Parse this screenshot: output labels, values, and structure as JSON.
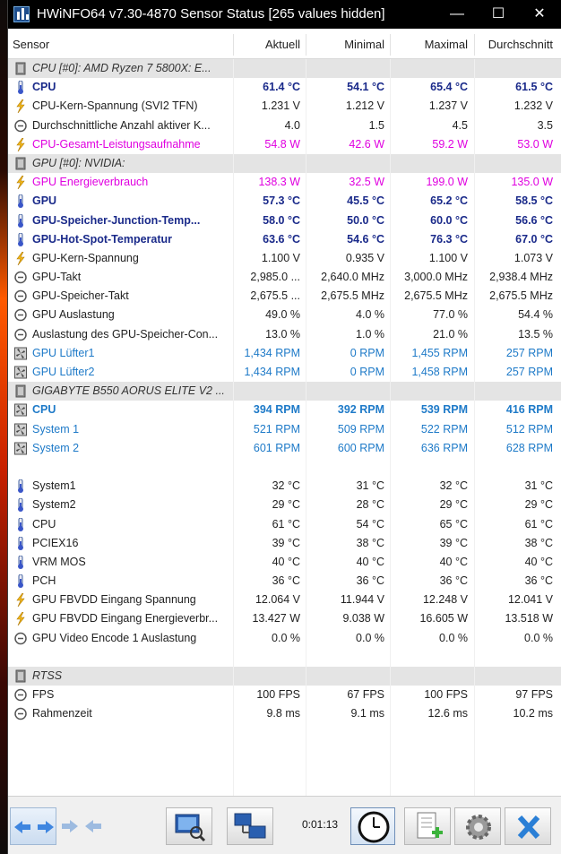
{
  "window": {
    "title": "HWiNFO64 v7.30-4870 Sensor Status [265 values hidden]",
    "minimize_glyph": "—",
    "maximize_glyph": "☐",
    "close_glyph": "✕"
  },
  "columns": {
    "sensor": "Sensor",
    "current": "Aktuell",
    "min": "Minimal",
    "max": "Maximal",
    "avg": "Durchschnitt"
  },
  "colors": {
    "blue_bold": "#1a2a8a",
    "magenta": "#e000e0",
    "fan_blue": "#1e7ac8",
    "black": "#222222"
  },
  "rows": [
    {
      "type": "group",
      "icon": "chip-icon",
      "name": "CPU [#0]: AMD Ryzen 7 5800X: E..."
    },
    {
      "type": "sensor",
      "icon": "thermometer-icon",
      "style": "bold-blue",
      "name": "CPU",
      "current": "61.4 °C",
      "min": "54.1 °C",
      "max": "65.4 °C",
      "avg": "61.5 °C"
    },
    {
      "type": "sensor",
      "icon": "lightning-icon",
      "style": "normal",
      "name": "CPU-Kern-Spannung (SVI2 TFN)",
      "current": "1.231 V",
      "min": "1.212 V",
      "max": "1.237 V",
      "avg": "1.232 V"
    },
    {
      "type": "sensor",
      "icon": "clock-icon",
      "style": "normal",
      "name": "Durchschnittliche Anzahl aktiver K...",
      "current": "4.0",
      "min": "1.5",
      "max": "4.5",
      "avg": "3.5"
    },
    {
      "type": "sensor",
      "icon": "lightning-icon",
      "style": "magenta",
      "name": "CPU-Gesamt-Leistungsaufnahme",
      "current": "54.8 W",
      "min": "42.6 W",
      "max": "59.2 W",
      "avg": "53.0 W"
    },
    {
      "type": "group",
      "icon": "chip-icon",
      "name": "GPU [#0]: NVIDIA:"
    },
    {
      "type": "sensor",
      "icon": "lightning-icon",
      "style": "magenta",
      "name": "GPU Energieverbrauch",
      "current": "138.3 W",
      "min": "32.5 W",
      "max": "199.0 W",
      "avg": "135.0 W"
    },
    {
      "type": "sensor",
      "icon": "thermometer-icon",
      "style": "bold-blue",
      "name": "GPU",
      "current": "57.3 °C",
      "min": "45.5 °C",
      "max": "65.2 °C",
      "avg": "58.5 °C"
    },
    {
      "type": "sensor",
      "icon": "thermometer-icon",
      "style": "bold-blue",
      "name": "GPU-Speicher-Junction-Temp...",
      "current": "58.0 °C",
      "min": "50.0 °C",
      "max": "60.0 °C",
      "avg": "56.6 °C"
    },
    {
      "type": "sensor",
      "icon": "thermometer-icon",
      "style": "bold-blue",
      "name": "GPU-Hot-Spot-Temperatur",
      "current": "63.6 °C",
      "min": "54.6 °C",
      "max": "76.3 °C",
      "avg": "67.0 °C"
    },
    {
      "type": "sensor",
      "icon": "lightning-icon",
      "style": "normal",
      "name": "GPU-Kern-Spannung",
      "current": "1.100 V",
      "min": "0.935 V",
      "max": "1.100 V",
      "avg": "1.073 V"
    },
    {
      "type": "sensor",
      "icon": "clock-icon",
      "style": "normal",
      "name": "GPU-Takt",
      "current": "2,985.0 ...",
      "min": "2,640.0 MHz",
      "max": "3,000.0 MHz",
      "avg": "2,938.4 MHz"
    },
    {
      "type": "sensor",
      "icon": "clock-icon",
      "style": "normal",
      "name": "GPU-Speicher-Takt",
      "current": "2,675.5 ...",
      "min": "2,675.5 MHz",
      "max": "2,675.5 MHz",
      "avg": "2,675.5 MHz"
    },
    {
      "type": "sensor",
      "icon": "clock-icon",
      "style": "normal",
      "name": "GPU Auslastung",
      "current": "49.0 %",
      "min": "4.0 %",
      "max": "77.0 %",
      "avg": "54.4 %"
    },
    {
      "type": "sensor",
      "icon": "clock-icon",
      "style": "normal",
      "name": "Auslastung des GPU-Speicher-Con...",
      "current": "13.0 %",
      "min": "1.0 %",
      "max": "21.0 %",
      "avg": "13.5 %"
    },
    {
      "type": "sensor",
      "icon": "fan-icon",
      "style": "fan",
      "name": "GPU Lüfter1",
      "current": "1,434 RPM",
      "min": "0 RPM",
      "max": "1,455 RPM",
      "avg": "257 RPM"
    },
    {
      "type": "sensor",
      "icon": "fan-icon",
      "style": "fan",
      "name": "GPU Lüfter2",
      "current": "1,434 RPM",
      "min": "0 RPM",
      "max": "1,458 RPM",
      "avg": "257 RPM"
    },
    {
      "type": "group",
      "icon": "chip-icon",
      "name": "GIGABYTE B550 AORUS ELITE V2 ..."
    },
    {
      "type": "sensor",
      "icon": "fan-icon",
      "style": "bold-fan",
      "name": "CPU",
      "current": "394 RPM",
      "min": "392 RPM",
      "max": "539 RPM",
      "avg": "416 RPM"
    },
    {
      "type": "sensor",
      "icon": "fan-icon",
      "style": "fan",
      "name": "System 1",
      "current": "521 RPM",
      "min": "509 RPM",
      "max": "522 RPM",
      "avg": "512 RPM"
    },
    {
      "type": "sensor",
      "icon": "fan-icon",
      "style": "fan",
      "name": "System 2",
      "current": "601 RPM",
      "min": "600 RPM",
      "max": "636 RPM",
      "avg": "628 RPM"
    },
    {
      "type": "blank"
    },
    {
      "type": "sensor",
      "icon": "thermometer-icon",
      "style": "normal",
      "name": "System1",
      "current": "32 °C",
      "min": "31 °C",
      "max": "32 °C",
      "avg": "31 °C"
    },
    {
      "type": "sensor",
      "icon": "thermometer-icon",
      "style": "normal",
      "name": "System2",
      "current": "29 °C",
      "min": "28 °C",
      "max": "29 °C",
      "avg": "29 °C"
    },
    {
      "type": "sensor",
      "icon": "thermometer-icon",
      "style": "normal",
      "name": "CPU",
      "current": "61 °C",
      "min": "54 °C",
      "max": "65 °C",
      "avg": "61 °C"
    },
    {
      "type": "sensor",
      "icon": "thermometer-icon",
      "style": "normal",
      "name": "PCIEX16",
      "current": "39 °C",
      "min": "38 °C",
      "max": "39 °C",
      "avg": "38 °C"
    },
    {
      "type": "sensor",
      "icon": "thermometer-icon",
      "style": "normal",
      "name": "VRM MOS",
      "current": "40 °C",
      "min": "40 °C",
      "max": "40 °C",
      "avg": "40 °C"
    },
    {
      "type": "sensor",
      "icon": "thermometer-icon",
      "style": "normal",
      "name": "PCH",
      "current": "36 °C",
      "min": "36 °C",
      "max": "36 °C",
      "avg": "36 °C"
    },
    {
      "type": "sensor",
      "icon": "lightning-icon",
      "style": "normal",
      "name": "GPU FBVDD Eingang Spannung",
      "current": "12.064 V",
      "min": "11.944 V",
      "max": "12.248 V",
      "avg": "12.041 V"
    },
    {
      "type": "sensor",
      "icon": "lightning-icon",
      "style": "normal",
      "name": "GPU FBVDD Eingang Energieverbr...",
      "current": "13.427 W",
      "min": "9.038 W",
      "max": "16.605 W",
      "avg": "13.518 W"
    },
    {
      "type": "sensor",
      "icon": "clock-icon",
      "style": "normal",
      "name": "GPU Video Encode 1 Auslastung",
      "current": "0.0 %",
      "min": "0.0 %",
      "max": "0.0 %",
      "avg": "0.0 %"
    },
    {
      "type": "blank"
    },
    {
      "type": "group",
      "icon": "chip-icon",
      "name": "RTSS"
    },
    {
      "type": "sensor",
      "icon": "clock-icon",
      "style": "normal",
      "name": "FPS",
      "current": "100 FPS",
      "min": "67 FPS",
      "max": "100 FPS",
      "avg": "97 FPS"
    },
    {
      "type": "sensor",
      "icon": "clock-icon",
      "style": "normal",
      "name": "Rahmenzeit",
      "current": "9.8 ms",
      "min": "9.1 ms",
      "max": "12.6 ms",
      "avg": "10.2 ms"
    },
    {
      "type": "blank"
    },
    {
      "type": "blank"
    },
    {
      "type": "blank"
    },
    {
      "type": "blank"
    }
  ],
  "toolbar": {
    "elapsed": "0:01:13"
  }
}
